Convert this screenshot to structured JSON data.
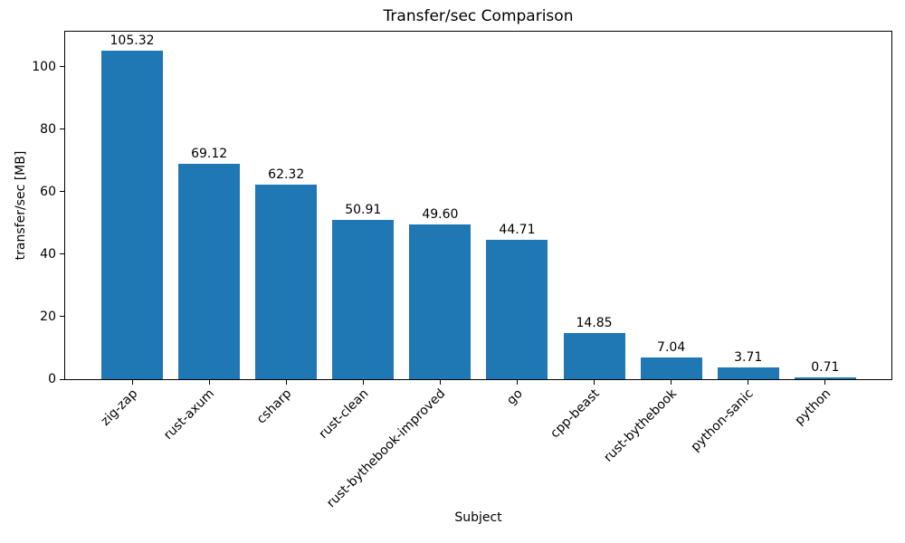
{
  "chart_data": {
    "type": "bar",
    "title": "Transfer/sec Comparison",
    "xlabel": "Subject",
    "ylabel": "transfer/sec [MB]",
    "categories": [
      "zig-zap",
      "rust-axum",
      "csharp",
      "rust-clean",
      "rust-bythebook-improved",
      "go",
      "cpp-beast",
      "rust-bythebook",
      "python-sanic",
      "python"
    ],
    "values": [
      105.32,
      69.12,
      62.32,
      50.91,
      49.6,
      44.71,
      14.85,
      7.04,
      3.71,
      0.71
    ],
    "value_labels": [
      "105.32",
      "69.12",
      "62.32",
      "50.91",
      "49.60",
      "44.71",
      "14.85",
      "7.04",
      "3.71",
      "0.71"
    ],
    "yticks": [
      0,
      20,
      40,
      60,
      80,
      100
    ],
    "ylim": [
      0,
      111.3
    ],
    "xlim": [
      -0.87,
      9.86
    ],
    "bar_width_units": 0.8,
    "bar_color": "#1f77b4",
    "text_color": "#000000",
    "grid": false,
    "legend_position": "none"
  }
}
